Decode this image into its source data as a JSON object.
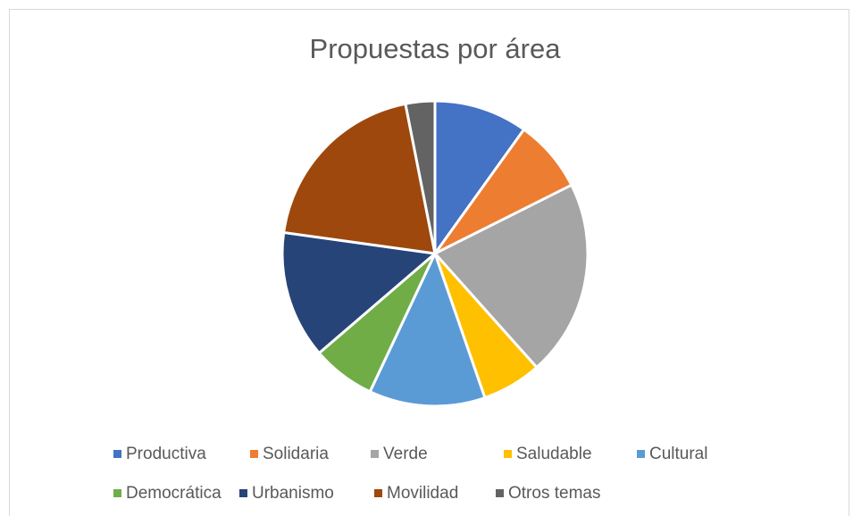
{
  "chart_data": {
    "type": "pie",
    "title": "Propuestas por área",
    "categories": [
      "Productiva",
      "Solidaria",
      "Verde",
      "Saludable",
      "Cultural",
      "Democrática",
      "Urbanismo",
      "Movilidad",
      "Otros temas"
    ],
    "values": [
      9.9,
      7.7,
      20.8,
      6.3,
      12.3,
      6.7,
      13.5,
      19.7,
      3.1
    ],
    "colors": [
      "#4472c4",
      "#ed7d31",
      "#a5a5a5",
      "#ffc000",
      "#5b9bd5",
      "#70ad47",
      "#264478",
      "#9e480e",
      "#636363"
    ],
    "legend": "bottom"
  }
}
